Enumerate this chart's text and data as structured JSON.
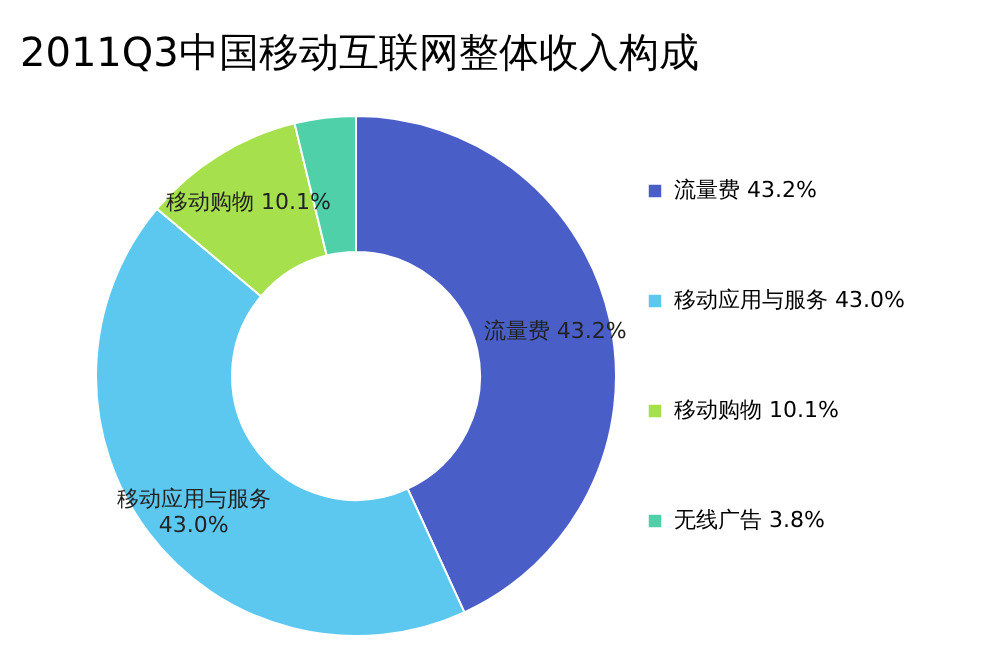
{
  "chart_data": {
    "type": "donut",
    "title": "2011Q3中国移动互联网整体收入构成",
    "categories": [
      "流量费  43.2%",
      "移动应用与服务  43.0%",
      "移动购物  10.1%",
      "无线广告  3.8%"
    ],
    "values": [
      43.2,
      43.0,
      10.1,
      3.8
    ],
    "colors": [
      "#4a5ec8",
      "#5cc8f0",
      "#a6e04c",
      "#50d0a8"
    ],
    "value_labels": [
      "流量费  43.2%",
      "移动应用与服务\n43.0%",
      "移动购物  10.1%",
      null
    ],
    "legend": "right"
  }
}
